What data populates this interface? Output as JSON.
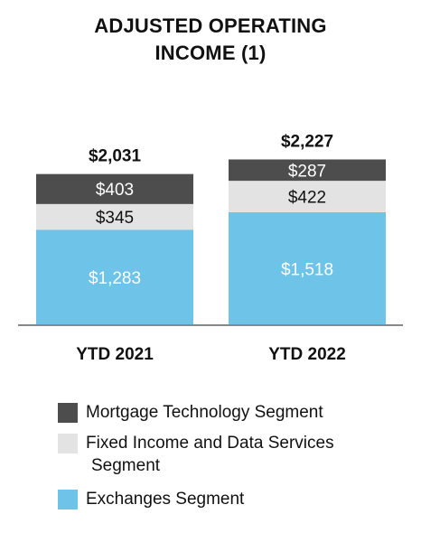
{
  "title": {
    "line1": "ADJUSTED OPERATING",
    "line2": "INCOME (1)"
  },
  "colors": {
    "mortgage": "#4d4d4d",
    "fixed_income": "#e3e3e3",
    "exchanges": "#6ec3e8",
    "axis": "#888888"
  },
  "chart_data": {
    "type": "bar",
    "stacked": true,
    "title": "ADJUSTED OPERATING INCOME (1)",
    "categories": [
      "YTD 2021",
      "YTD 2022"
    ],
    "series": [
      {
        "name": "Exchanges Segment",
        "values": [
          1283,
          1518
        ],
        "labels": [
          "$1,283",
          "$1,518"
        ],
        "color_key": "exchanges",
        "label_color": "#ffffff"
      },
      {
        "name": "Fixed Income and Data Services Segment",
        "values": [
          345,
          422
        ],
        "labels": [
          "$345",
          "$422"
        ],
        "color_key": "fixed_income",
        "label_color": "#111111"
      },
      {
        "name": "Mortgage Technology Segment",
        "values": [
          403,
          287
        ],
        "labels": [
          "$403",
          "$287"
        ],
        "color_key": "mortgage",
        "label_color": "#ffffff"
      }
    ],
    "totals": [
      2031,
      2227
    ],
    "total_labels": [
      "$2,031",
      "$2,227"
    ],
    "xlabel": "",
    "ylabel": "",
    "grid": false,
    "legend_position": "bottom"
  },
  "legend": {
    "mortgage": "Mortgage Technology Segment",
    "fixed_income_line1": "Fixed Income and Data Services",
    "fixed_income_line2": "Segment",
    "exchanges": "Exchanges Segment"
  }
}
